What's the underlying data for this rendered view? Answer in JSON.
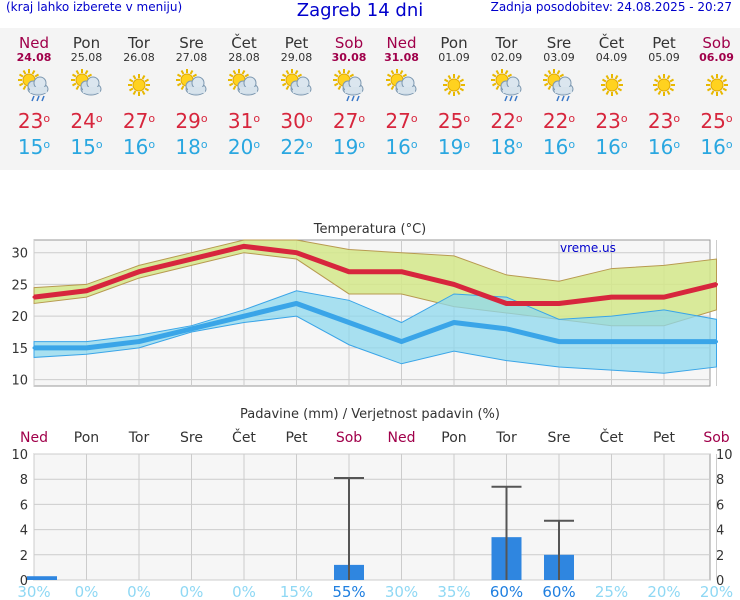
{
  "header": {
    "left_note": "(kraj lahko izberete v meniju)",
    "title": "Zagreb 14 dni",
    "updated": "Zadnja posodobitev: 24.08.2025 - 20:27"
  },
  "days": [
    {
      "name": "Ned",
      "date": "24.08",
      "weekend": true,
      "icon": "sun-cloud-rain-icon",
      "max": "23",
      "min": "15"
    },
    {
      "name": "Pon",
      "date": "25.08",
      "weekend": false,
      "icon": "sun-cloud-icon",
      "max": "24",
      "min": "15"
    },
    {
      "name": "Tor",
      "date": "26.08",
      "weekend": false,
      "icon": "sun-icon",
      "max": "27",
      "min": "16"
    },
    {
      "name": "Sre",
      "date": "27.08",
      "weekend": false,
      "icon": "sun-cloud-icon",
      "max": "29",
      "min": "18"
    },
    {
      "name": "Čet",
      "date": "28.08",
      "weekend": false,
      "icon": "sun-cloud-icon",
      "max": "31",
      "min": "20"
    },
    {
      "name": "Pet",
      "date": "29.08",
      "weekend": false,
      "icon": "sun-cloud-icon",
      "max": "30",
      "min": "22"
    },
    {
      "name": "Sob",
      "date": "30.08",
      "weekend": true,
      "icon": "sun-cloud-rain-icon",
      "max": "27",
      "min": "19"
    },
    {
      "name": "Ned",
      "date": "31.08",
      "weekend": true,
      "icon": "sun-cloud-icon",
      "max": "27",
      "min": "16"
    },
    {
      "name": "Pon",
      "date": "01.09",
      "weekend": false,
      "icon": "sun-icon",
      "max": "25",
      "min": "19"
    },
    {
      "name": "Tor",
      "date": "02.09",
      "weekend": false,
      "icon": "sun-cloud-rain-icon",
      "max": "22",
      "min": "18"
    },
    {
      "name": "Sre",
      "date": "03.09",
      "weekend": false,
      "icon": "sun-cloud-rain-icon",
      "max": "22",
      "min": "16"
    },
    {
      "name": "Čet",
      "date": "04.09",
      "weekend": false,
      "icon": "sun-icon",
      "max": "23",
      "min": "16"
    },
    {
      "name": "Pet",
      "date": "05.09",
      "weekend": false,
      "icon": "sun-icon",
      "max": "23",
      "min": "16"
    },
    {
      "name": "Sob",
      "date": "06.09",
      "weekend": true,
      "icon": "sun-icon",
      "max": "25",
      "min": "16"
    }
  ],
  "degree_symbol": "o",
  "colors": {
    "max_line": "#d7263d",
    "min_line": "#3aa5e8",
    "max_band": "#d4e88a",
    "min_band": "#8ed8ee",
    "bars": "#2f86e0",
    "weekend": "#a0004a"
  },
  "chart_data": [
    {
      "type": "line",
      "title": "Temperatura (°C)",
      "watermark": "vreme.us",
      "ylim": [
        9,
        32
      ],
      "yticks": [
        10,
        15,
        20,
        25,
        30
      ],
      "grid": true,
      "series": [
        {
          "name": "max",
          "values": [
            23,
            24,
            27,
            29,
            31,
            30,
            27,
            27,
            25,
            22,
            22,
            23,
            23,
            25
          ],
          "band_low": [
            22,
            23,
            26,
            28,
            30,
            29,
            23.5,
            23.5,
            21.5,
            20.5,
            19.5,
            18.5,
            18.5,
            21
          ],
          "band_high": [
            24.5,
            25,
            28,
            30,
            32,
            32,
            30.5,
            30,
            29.5,
            26.5,
            25.5,
            27.5,
            28,
            29
          ]
        },
        {
          "name": "min",
          "values": [
            15,
            15,
            16,
            18,
            20,
            22,
            19,
            16,
            19,
            18,
            16,
            16,
            16,
            16
          ],
          "band_low": [
            13.5,
            14,
            15,
            17.5,
            19,
            20,
            15.5,
            12.5,
            14.5,
            13,
            12,
            11.5,
            11,
            12
          ],
          "band_high": [
            16,
            16,
            17,
            18.5,
            21,
            24,
            22.5,
            19,
            23.5,
            23,
            19.5,
            20,
            21,
            19.5
          ]
        }
      ]
    },
    {
      "type": "bar",
      "title": "Padavine (mm) / Verjetnost padavin (%)",
      "ylim": [
        0,
        10
      ],
      "yticks": [
        0,
        2,
        4,
        6,
        8,
        10
      ],
      "categories": [
        "Ned",
        "Pon",
        "Tor",
        "Sre",
        "Čet",
        "Pet",
        "Sob",
        "Ned",
        "Pon",
        "Tor",
        "Sre",
        "Čet",
        "Pet",
        "Sob"
      ],
      "weekend": [
        true,
        false,
        false,
        false,
        false,
        false,
        true,
        true,
        false,
        false,
        false,
        false,
        false,
        true
      ],
      "values": [
        0.3,
        0,
        0,
        0,
        0,
        0,
        1.2,
        0,
        0,
        3.4,
        2.0,
        0,
        0,
        0
      ],
      "error_high": [
        0,
        0,
        0,
        0,
        0,
        0,
        8.1,
        0,
        0,
        7.4,
        4.7,
        0,
        0,
        0
      ],
      "probability": [
        "30%",
        "0%",
        "0%",
        "0%",
        "0%",
        "15%",
        "55%",
        "30%",
        "35%",
        "60%",
        "60%",
        "25%",
        "20%",
        "20%"
      ],
      "probability_strong": [
        false,
        false,
        false,
        false,
        false,
        false,
        true,
        false,
        false,
        true,
        true,
        false,
        false,
        false
      ]
    }
  ]
}
